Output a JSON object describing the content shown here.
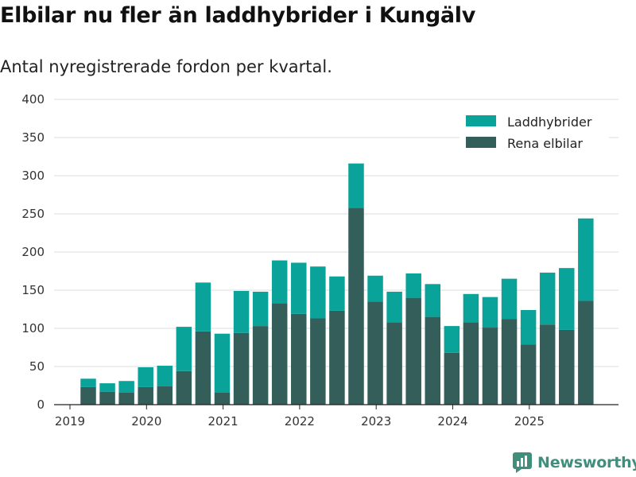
{
  "chart_data": {
    "type": "bar",
    "stacked": true,
    "title": "Elbilar nu fler än laddhybrider i Kungälv",
    "subtitle": "Antal nyregistrerade fordon per kvartal.",
    "xlabel": "",
    "ylabel": "",
    "ylim": [
      0,
      400
    ],
    "yticks": [
      0,
      50,
      100,
      150,
      200,
      250,
      300,
      350,
      400
    ],
    "grid": true,
    "legend_position": "top-right",
    "x_tick_labels": [
      "2019",
      "2020",
      "2021",
      "2022",
      "2023",
      "2024",
      "2025"
    ],
    "categories": [
      "2019 Q2",
      "2019 Q3",
      "2019 Q4",
      "2020 Q1",
      "2020 Q2",
      "2020 Q3",
      "2020 Q4",
      "2021 Q1",
      "2021 Q2",
      "2021 Q3",
      "2021 Q4",
      "2022 Q1",
      "2022 Q2",
      "2022 Q3",
      "2022 Q4",
      "2023 Q1",
      "2023 Q2",
      "2023 Q3",
      "2023 Q4",
      "2024 Q1",
      "2024 Q2",
      "2024 Q3",
      "2024 Q4",
      "2025 Q1",
      "2025 Q2",
      "2025 Q3",
      "2025 Q4"
    ],
    "series": [
      {
        "name": "Rena elbilar",
        "color": "#335e5a",
        "values": [
          23,
          17,
          16,
          23,
          24,
          44,
          96,
          16,
          94,
          103,
          133,
          119,
          113,
          123,
          258,
          135,
          108,
          140,
          115,
          68,
          108,
          101,
          112,
          79,
          105,
          98,
          136
        ]
      },
      {
        "name": "Laddhybrider",
        "color": "#0aa39a",
        "values": [
          11,
          11,
          15,
          26,
          27,
          58,
          64,
          77,
          55,
          45,
          56,
          67,
          68,
          45,
          58,
          34,
          40,
          32,
          43,
          35,
          37,
          40,
          53,
          45,
          68,
          81,
          108
        ]
      }
    ]
  },
  "logo": {
    "text": "Newsworthy",
    "icon": "newsworthy-logo-icon"
  }
}
